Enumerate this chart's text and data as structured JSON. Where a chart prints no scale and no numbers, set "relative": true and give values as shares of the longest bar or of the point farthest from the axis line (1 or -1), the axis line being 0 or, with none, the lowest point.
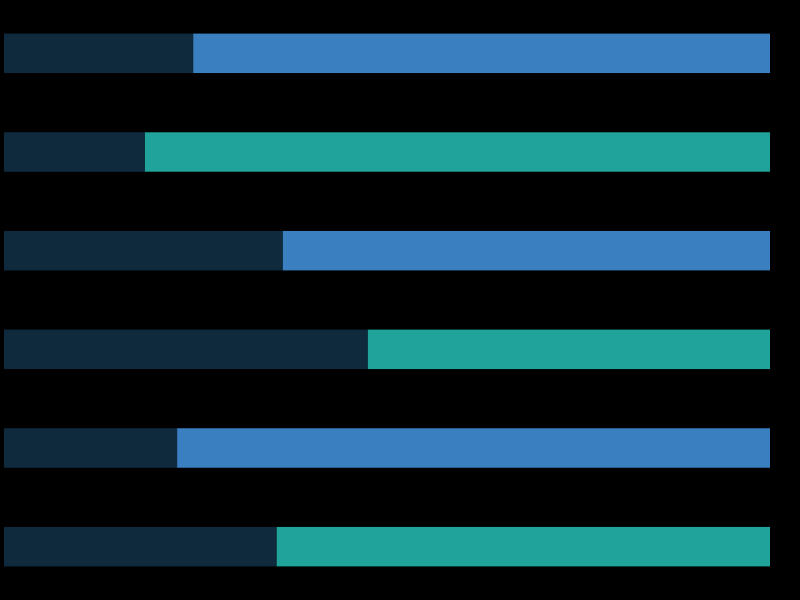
{
  "chart_data": {
    "type": "bar",
    "orientation": "horizontal",
    "relative": true,
    "stacked": true,
    "categories": [
      null,
      null,
      null,
      null,
      null,
      null
    ],
    "series": [
      {
        "color": "#0f2a3c",
        "values": [
          0.247,
          0.184,
          0.364,
          0.475,
          0.226,
          0.356
        ]
      },
      {
        "colors": [
          "#3a7fc0",
          "#1fa39a",
          "#3a7fc0",
          "#1fa39a",
          "#3a7fc0",
          "#1fa39a"
        ],
        "values": [
          0.753,
          0.816,
          0.636,
          0.525,
          0.774,
          0.644
        ]
      }
    ]
  }
}
